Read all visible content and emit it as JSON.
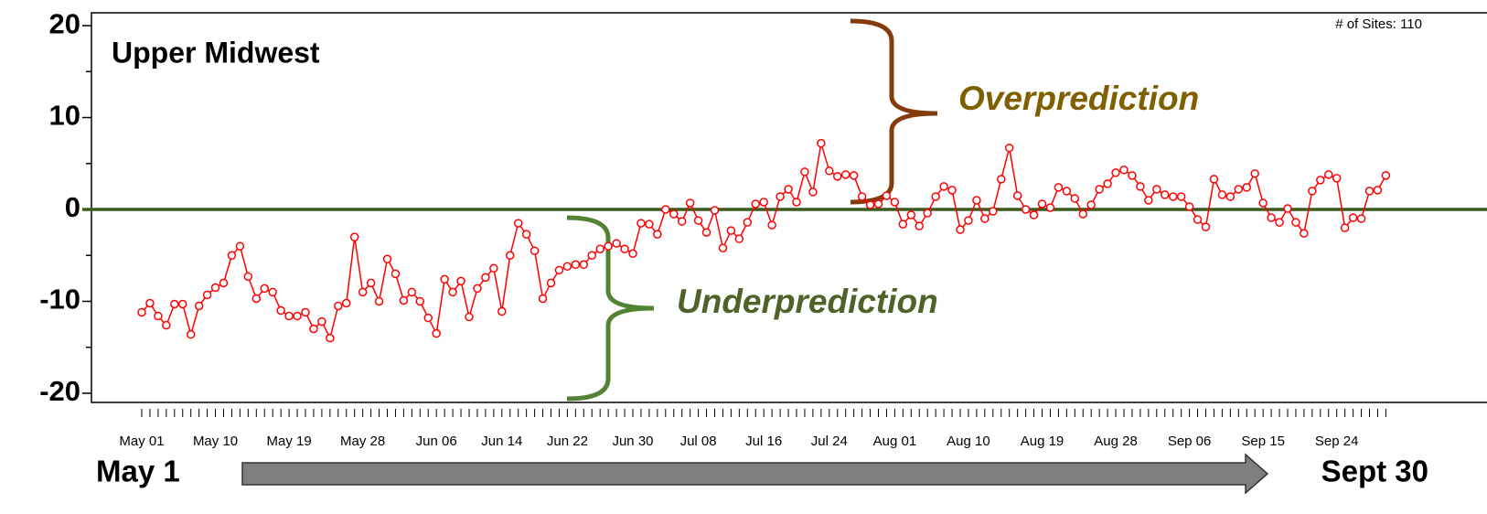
{
  "chart_data": {
    "type": "line",
    "title": "Upper Midwest",
    "annotations": {
      "sites": "# of Sites: 110",
      "over": "Overprediction",
      "under": "Underprediction",
      "start": "May 1",
      "end": "Sept 30"
    },
    "categories": [
      "May 01",
      null,
      null,
      null,
      null,
      null,
      null,
      null,
      null,
      "May 10",
      null,
      null,
      null,
      null,
      null,
      null,
      null,
      null,
      "May 19",
      null,
      null,
      null,
      null,
      null,
      null,
      null,
      null,
      "May 28",
      null,
      null,
      null,
      null,
      null,
      null,
      null,
      null,
      "Jun 06",
      null,
      null,
      null,
      null,
      null,
      null,
      null,
      "Jun 14",
      null,
      null,
      null,
      null,
      null,
      null,
      null,
      "Jun 22",
      null,
      null,
      null,
      null,
      null,
      null,
      null,
      "Jun 30",
      null,
      null,
      null,
      null,
      null,
      null,
      null,
      "Jul 08",
      null,
      null,
      null,
      null,
      null,
      null,
      null,
      "Jul 16",
      null,
      null,
      null,
      null,
      null,
      null,
      null,
      "Jul 24",
      null,
      null,
      null,
      null,
      null,
      null,
      null,
      "Aug 01",
      null,
      null,
      null,
      null,
      null,
      null,
      null,
      null,
      "Aug 10",
      null,
      null,
      null,
      null,
      null,
      null,
      null,
      null,
      "Aug 19",
      null,
      null,
      null,
      null,
      null,
      null,
      null,
      null,
      "Aug 28",
      null,
      null,
      null,
      null,
      null,
      null,
      null,
      null,
      "Sep 06",
      null,
      null,
      null,
      null,
      null,
      null,
      null,
      null,
      "Sep 15",
      null,
      null,
      null,
      null,
      null,
      null,
      null,
      null,
      "Sep 24",
      null,
      null,
      null,
      null,
      null,
      null
    ],
    "series": [
      {
        "color": "#ff0000",
        "values": [
          -11.2,
          -10.2,
          -11.6,
          -12.6,
          -10.3,
          -10.3,
          -13.6,
          -10.5,
          -9.3,
          -8.5,
          -8,
          -5,
          -4,
          -7.3,
          -9.7,
          -8.6,
          -9,
          -11,
          -11.6,
          -11.6,
          -11.2,
          -13,
          -12.2,
          -14,
          -10.5,
          -10.2,
          -3,
          -9,
          -8,
          -10,
          -5.4,
          -7,
          -9.9,
          -9,
          -10,
          -11.8,
          -13.5,
          -7.6,
          -9,
          -7.8,
          -11.7,
          -8.6,
          -7.4,
          -6.4,
          -11.1,
          -5,
          -1.5,
          -2.7,
          -4.5,
          -9.7,
          -8,
          -6.6,
          -6.2,
          -6,
          -6,
          -5,
          -4.3,
          -4,
          -3.7,
          -4.3,
          -4.8,
          -1.5,
          -1.6,
          -2.7,
          0,
          -0.5,
          -1.3,
          0.7,
          -1.2,
          -2.5,
          -0.1,
          -4.2,
          -2.3,
          -3.2,
          -1.4,
          0.6,
          0.8,
          -1.7,
          1.4,
          2.2,
          0.8,
          4.1,
          1.9,
          7.2,
          4.2,
          3.6,
          3.8,
          3.7,
          1.4,
          0.5,
          0.6,
          1.5,
          0.8,
          -1.6,
          -0.6,
          -1.8,
          -0.4,
          1.4,
          2.5,
          2.1,
          -2.2,
          -1.2,
          1,
          -1,
          -0.2,
          3.3,
          6.7,
          1.5,
          0,
          -0.6,
          0.6,
          0.2,
          2.4,
          2,
          1.2,
          -0.5,
          0.5,
          2.2,
          2.8,
          4,
          4.3,
          3.7,
          2.5,
          1,
          2.2,
          1.6,
          1.4,
          1.4,
          0.3,
          -1.1,
          -1.9,
          3.3,
          1.6,
          1.4,
          2.2,
          2.4,
          3.9,
          0.7,
          -0.9,
          -1.4,
          0.1,
          -1.4,
          -2.6,
          2,
          3.2,
          3.8,
          3.4,
          -2,
          -0.9,
          -1,
          2,
          2.1,
          3.7
        ]
      }
    ],
    "ylim": [
      -21,
      21.4
    ],
    "yticks": [
      -20,
      -10,
      0,
      10,
      20
    ],
    "yminorticks": [
      -15,
      -5,
      5,
      15
    ],
    "reference_line": 0,
    "reference_color": "#3b5a1e"
  }
}
